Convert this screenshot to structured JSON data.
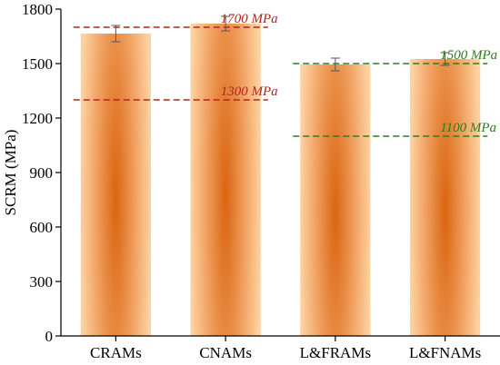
{
  "chart_data": {
    "type": "bar",
    "title": "",
    "xlabel": "",
    "ylabel": "SCRM (MPa)",
    "ylim": [
      0,
      1800
    ],
    "yticks": [
      0,
      300,
      600,
      900,
      1200,
      1500,
      1800
    ],
    "categories": [
      "CRAMs",
      "CNAMs",
      "L&FRAMs",
      "L&FNAMs"
    ],
    "values": [
      1665,
      1720,
      1495,
      1525
    ],
    "errors": [
      45,
      40,
      35,
      35
    ],
    "grid": false,
    "bar_colors": {
      "edge": "#fdd2a0",
      "center": "#d96510"
    },
    "reference_lines": [
      {
        "label": "1700 MPa",
        "value": 1700,
        "color": "#b3261e",
        "from_category": 0,
        "to_category": 1
      },
      {
        "label": "1300 MPa",
        "value": 1300,
        "color": "#b3261e",
        "from_category": 0,
        "to_category": 1
      },
      {
        "label": "1500 MPa",
        "value": 1500,
        "color": "#2e7d1e",
        "from_category": 2,
        "to_category": 3
      },
      {
        "label": "1100 MPa",
        "value": 1100,
        "color": "#2e7d1e",
        "from_category": 2,
        "to_category": 3
      }
    ]
  }
}
